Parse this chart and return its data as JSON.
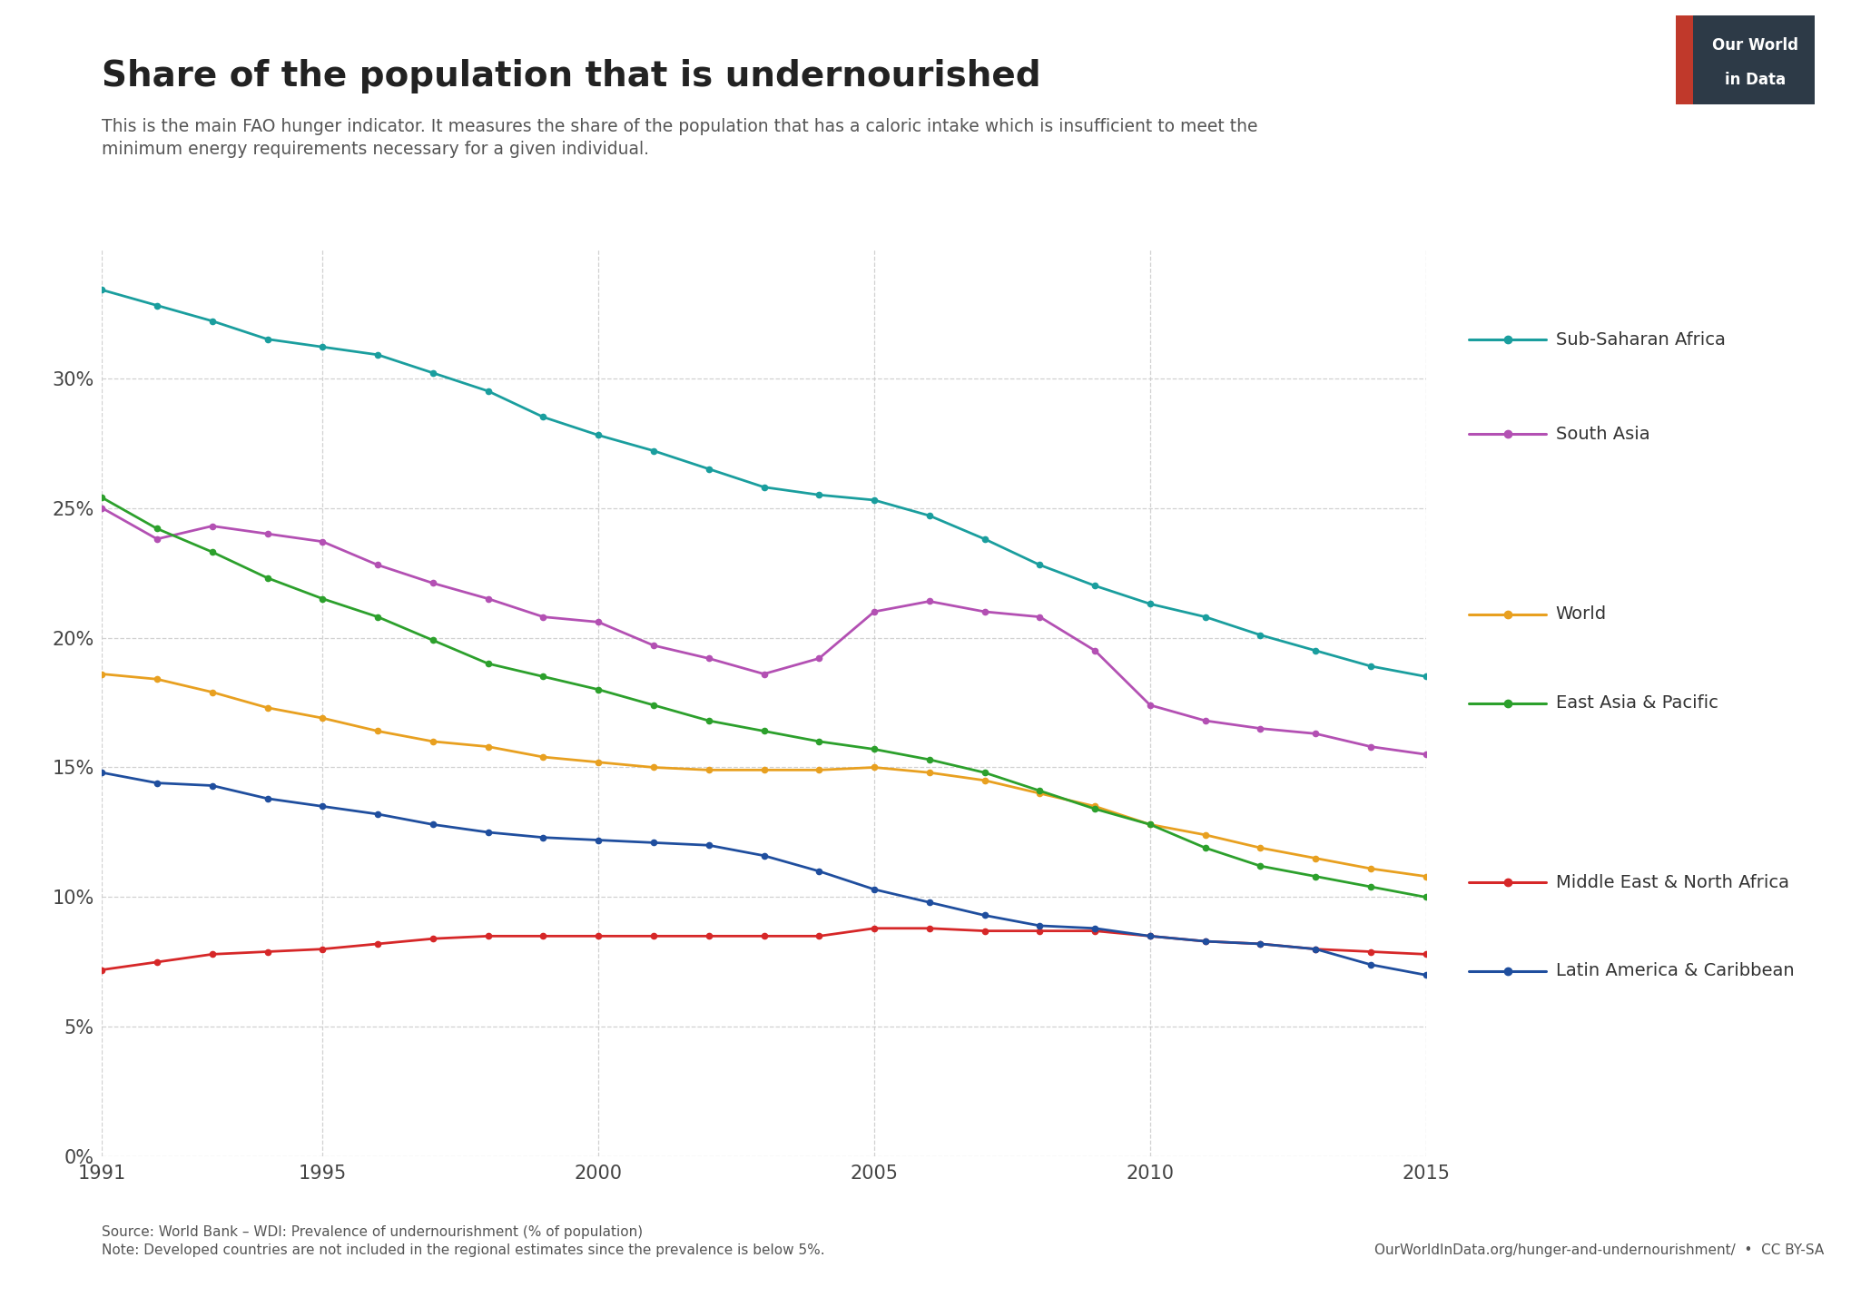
{
  "title": "Share of the population that is undernourished",
  "subtitle": "This is the main FAO hunger indicator. It measures the share of the population that has a caloric intake which is insufficient to meet the\nminimum energy requirements necessary for a given individual.",
  "footnote_left": "Source: World Bank – WDI: Prevalence of undernourishment (% of population)\nNote: Developed countries are not included in the regional estimates since the prevalence is below 5%.",
  "footnote_right": "OurWorldInData.org/hunger-and-undernourishment/  •  CC BY-SA",
  "xlim": [
    1991,
    2015
  ],
  "ylim": [
    0,
    35
  ],
  "yticks": [
    0,
    5,
    10,
    15,
    20,
    25,
    30
  ],
  "ytick_labels": [
    "0%",
    "5%",
    "10%",
    "15%",
    "20%",
    "25%",
    "30%"
  ],
  "xticks": [
    1991,
    1995,
    2000,
    2005,
    2010,
    2015
  ],
  "background_color": "#ffffff",
  "grid_color": "#cccccc",
  "series": [
    {
      "label": "Sub-Saharan Africa",
      "color": "#1a9e9e",
      "years": [
        1991,
        1992,
        1993,
        1994,
        1995,
        1996,
        1997,
        1998,
        1999,
        2000,
        2001,
        2002,
        2003,
        2004,
        2005,
        2006,
        2007,
        2008,
        2009,
        2010,
        2011,
        2012,
        2013,
        2014,
        2015
      ],
      "values": [
        33.4,
        32.8,
        32.2,
        31.5,
        31.2,
        30.9,
        30.2,
        29.5,
        28.5,
        27.8,
        27.2,
        26.5,
        25.8,
        25.5,
        25.3,
        24.7,
        23.8,
        22.8,
        22.0,
        21.3,
        20.8,
        20.1,
        19.5,
        18.9,
        18.5
      ]
    },
    {
      "label": "South Asia",
      "color": "#b350b3",
      "years": [
        1991,
        1992,
        1993,
        1994,
        1995,
        1996,
        1997,
        1998,
        1999,
        2000,
        2001,
        2002,
        2003,
        2004,
        2005,
        2006,
        2007,
        2008,
        2009,
        2010,
        2011,
        2012,
        2013,
        2014,
        2015
      ],
      "values": [
        25.0,
        23.8,
        24.3,
        24.0,
        23.7,
        22.8,
        22.1,
        21.5,
        20.8,
        20.6,
        19.7,
        19.2,
        18.6,
        19.2,
        21.0,
        21.4,
        21.0,
        20.8,
        19.5,
        17.4,
        16.8,
        16.5,
        16.3,
        15.8,
        15.5
      ]
    },
    {
      "label": "World",
      "color": "#e8a020",
      "years": [
        1991,
        1992,
        1993,
        1994,
        1995,
        1996,
        1997,
        1998,
        1999,
        2000,
        2001,
        2002,
        2003,
        2004,
        2005,
        2006,
        2007,
        2008,
        2009,
        2010,
        2011,
        2012,
        2013,
        2014,
        2015
      ],
      "values": [
        18.6,
        18.4,
        17.9,
        17.3,
        16.9,
        16.4,
        16.0,
        15.8,
        15.4,
        15.2,
        15.0,
        14.9,
        14.9,
        14.9,
        15.0,
        14.8,
        14.5,
        14.0,
        13.5,
        12.8,
        12.4,
        11.9,
        11.5,
        11.1,
        10.8
      ]
    },
    {
      "label": "East Asia & Pacific",
      "color": "#2ca02c",
      "years": [
        1991,
        1992,
        1993,
        1994,
        1995,
        1996,
        1997,
        1998,
        1999,
        2000,
        2001,
        2002,
        2003,
        2004,
        2005,
        2006,
        2007,
        2008,
        2009,
        2010,
        2011,
        2012,
        2013,
        2014,
        2015
      ],
      "values": [
        25.4,
        24.2,
        23.3,
        22.3,
        21.5,
        20.8,
        19.9,
        19.0,
        18.5,
        18.0,
        17.4,
        16.8,
        16.4,
        16.0,
        15.7,
        15.3,
        14.8,
        14.1,
        13.4,
        12.8,
        11.9,
        11.2,
        10.8,
        10.4,
        10.0
      ]
    },
    {
      "label": "Middle East & North Africa",
      "color": "#d62728",
      "years": [
        1991,
        1992,
        1993,
        1994,
        1995,
        1996,
        1997,
        1998,
        1999,
        2000,
        2001,
        2002,
        2003,
        2004,
        2005,
        2006,
        2007,
        2008,
        2009,
        2010,
        2011,
        2012,
        2013,
        2014,
        2015
      ],
      "values": [
        7.2,
        7.5,
        7.8,
        7.9,
        8.0,
        8.2,
        8.4,
        8.5,
        8.5,
        8.5,
        8.5,
        8.5,
        8.5,
        8.5,
        8.8,
        8.8,
        8.7,
        8.7,
        8.7,
        8.5,
        8.3,
        8.2,
        8.0,
        7.9,
        7.8
      ]
    },
    {
      "label": "Latin America & Caribbean",
      "color": "#1f4e9e",
      "years": [
        1991,
        1992,
        1993,
        1994,
        1995,
        1996,
        1997,
        1998,
        1999,
        2000,
        2001,
        2002,
        2003,
        2004,
        2005,
        2006,
        2007,
        2008,
        2009,
        2010,
        2011,
        2012,
        2013,
        2014,
        2015
      ],
      "values": [
        14.8,
        14.4,
        14.3,
        13.8,
        13.5,
        13.2,
        12.8,
        12.5,
        12.3,
        12.2,
        12.1,
        12.0,
        11.6,
        11.0,
        10.3,
        9.8,
        9.3,
        8.9,
        8.8,
        8.5,
        8.3,
        8.2,
        8.0,
        7.4,
        7.0
      ]
    }
  ],
  "legend_items": [
    {
      "label": "Sub-Saharan Africa",
      "color": "#1a9e9e"
    },
    {
      "label": "South Asia",
      "color": "#b350b3"
    },
    {
      "label": "World",
      "color": "#e8a020"
    },
    {
      "label": "East Asia & Pacific",
      "color": "#2ca02c"
    },
    {
      "label": "Middle East & North Africa",
      "color": "#d62728"
    },
    {
      "label": "Latin America & Caribbean",
      "color": "#1f4e9e"
    }
  ],
  "logo_dark_color": "#2d3a47",
  "logo_red_color": "#c0392b",
  "logo_line1": "Our World",
  "logo_line2": "in Data"
}
